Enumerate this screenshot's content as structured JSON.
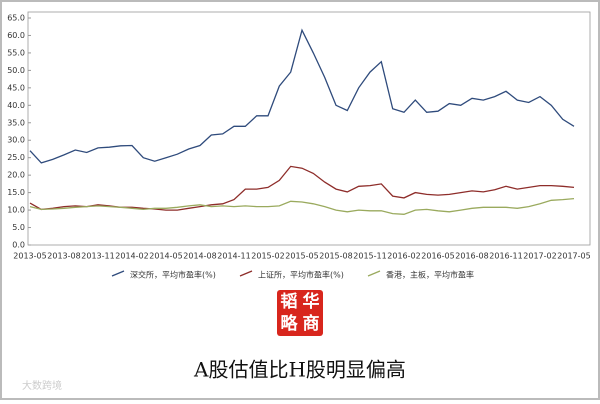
{
  "chart_data": {
    "type": "line",
    "categories": [
      "2013-05",
      null,
      null,
      "2013-08",
      null,
      null,
      "2013-11",
      null,
      null,
      "2014-02",
      null,
      null,
      "2014-05",
      null,
      null,
      "2014-08",
      null,
      null,
      "2014-11",
      null,
      null,
      "2015-02",
      null,
      null,
      "2015-05",
      null,
      null,
      "2015-08",
      null,
      null,
      "2015-11",
      null,
      null,
      "2016-02",
      null,
      null,
      "2016-05",
      null,
      null,
      "2016-08",
      null,
      null,
      "2016-11",
      null,
      null,
      "2017-02",
      null,
      null,
      "2017-05"
    ],
    "series": [
      {
        "name": "深交所，平均市盈率(%)",
        "color": "#2f4b7c",
        "values": [
          27,
          23.5,
          24.5,
          25.8,
          27.2,
          26.5,
          27.8,
          28,
          28.4,
          28.5,
          25,
          24,
          25,
          26,
          27.5,
          28.5,
          31.5,
          31.8,
          34,
          34,
          37,
          37,
          45.5,
          49.5,
          61.5,
          55,
          48,
          40,
          38.5,
          45,
          49.5,
          52.5,
          39,
          38,
          41.5,
          38,
          38.3,
          40.5,
          40,
          42,
          41.5,
          42.5,
          44,
          41.5,
          40.8,
          42.5,
          40,
          36,
          34
        ]
      },
      {
        "name": "上证所，平均市盈率(%)",
        "color": "#8e2d2a",
        "values": [
          12,
          10.2,
          10.5,
          11,
          11.2,
          11,
          11.5,
          11.2,
          10.8,
          10.8,
          10.5,
          10.3,
          10,
          10,
          10.5,
          11,
          11.5,
          11.8,
          13,
          16,
          16,
          16.5,
          18.5,
          22.5,
          22,
          20.5,
          18,
          16,
          15.2,
          16.8,
          17,
          17.5,
          14,
          13.5,
          15,
          14.5,
          14.3,
          14.5,
          15,
          15.5,
          15.2,
          15.8,
          16.8,
          16,
          16.5,
          17,
          17,
          16.8,
          16.5
        ]
      },
      {
        "name": "香港，主板，平均市盈率",
        "color": "#9aaa5e",
        "values": [
          11,
          10.2,
          10.3,
          10.5,
          10.8,
          11,
          11.2,
          11,
          10.8,
          10.5,
          10.2,
          10.5,
          10.5,
          10.8,
          11.2,
          11.5,
          11,
          11.2,
          11,
          11.2,
          11,
          11,
          11.2,
          12.5,
          12.3,
          11.8,
          11,
          10,
          9.5,
          10,
          9.8,
          9.8,
          9,
          8.8,
          10,
          10.2,
          9.8,
          9.5,
          10,
          10.5,
          10.8,
          10.8,
          10.8,
          10.5,
          11,
          11.8,
          12.8,
          13,
          13.3
        ]
      }
    ],
    "ylim": [
      0,
      65
    ],
    "yticks": [
      {
        "value": 0,
        "label": "0.0"
      },
      {
        "value": 5,
        "label": "5.0"
      },
      {
        "value": 10,
        "label": "10.0"
      },
      {
        "value": 15,
        "label": "15.0"
      },
      {
        "value": 20,
        "label": "20.0"
      },
      {
        "value": 25,
        "label": "25.0"
      },
      {
        "value": 30,
        "label": "30.0"
      },
      {
        "value": 35,
        "label": "35.0"
      },
      {
        "value": 40,
        "label": "40.0"
      },
      {
        "value": 45,
        "label": "45.0"
      },
      {
        "value": 50,
        "label": "50.0"
      },
      {
        "value": 55,
        "label": "55.0"
      },
      {
        "value": 60,
        "label": "60.0"
      },
      {
        "value": 65,
        "label": "65.0"
      }
    ]
  },
  "logo": {
    "chars": [
      "韬",
      "华",
      "略",
      "商"
    ]
  },
  "caption": "A股估值比H股明显偏高",
  "watermark": "大数跨境"
}
